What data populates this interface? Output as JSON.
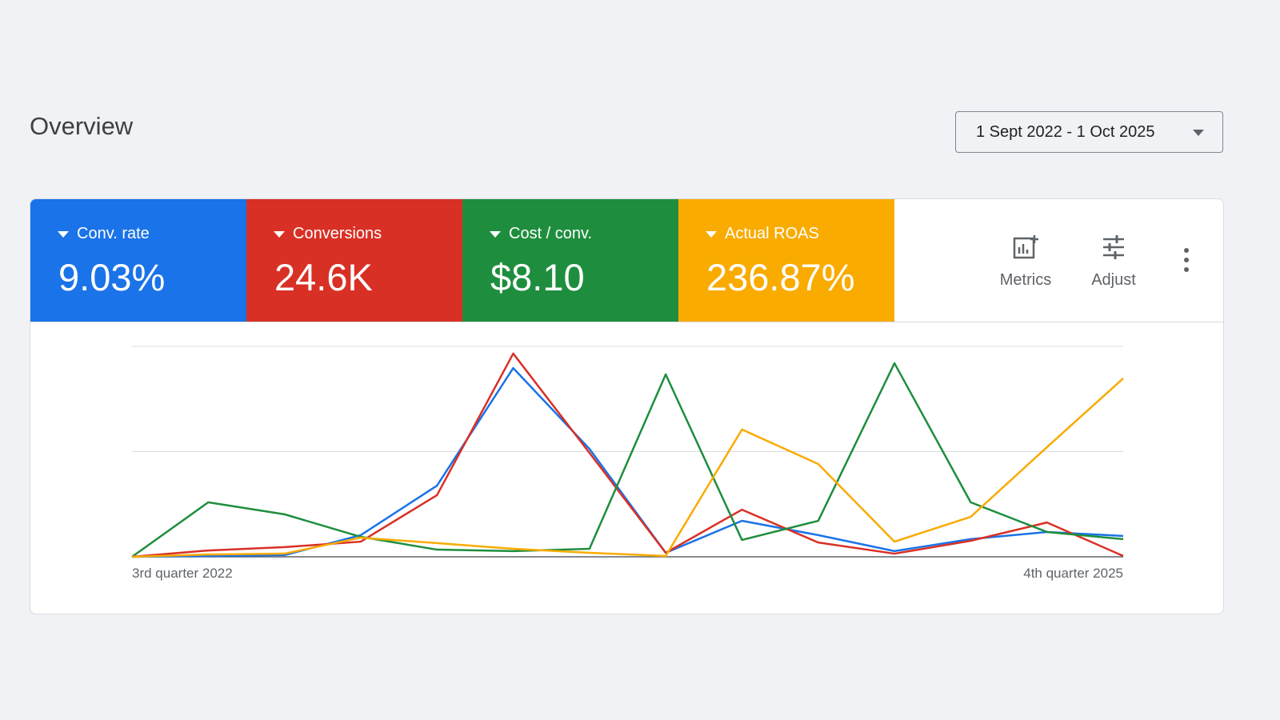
{
  "header": {
    "title": "Overview",
    "date_range": "1 Sept 2022 - 1 Oct 2025"
  },
  "metric_cards": [
    {
      "label": "Conv. rate",
      "value": "9.03%",
      "color": "#1a73e8"
    },
    {
      "label": "Conversions",
      "value": "24.6K",
      "color": "#d93025"
    },
    {
      "label": "Cost / conv.",
      "value": "$8.10",
      "color": "#1e8e3e"
    },
    {
      "label": "Actual ROAS",
      "value": "236.87%",
      "color": "#f9ab00"
    }
  ],
  "toolbar": {
    "metrics": "Metrics",
    "adjust": "Adjust"
  },
  "chart_data": {
    "type": "line",
    "categories": [
      "3rd quarter 2022",
      null,
      null,
      null,
      null,
      null,
      null,
      null,
      null,
      null,
      null,
      null,
      null,
      "4th quarter 2025"
    ],
    "ylim": [
      0,
      100
    ],
    "grid_values": [
      0,
      50,
      100
    ],
    "series": [
      {
        "color": "#1a73e8",
        "values": [
          0,
          0.4,
          0.8,
          10.3,
          33.8,
          89.7,
          51.3,
          1.9,
          17.1,
          10.3,
          2.7,
          8.4,
          11.8,
          9.9
        ]
      },
      {
        "color": "#d93025",
        "values": [
          0,
          3,
          4.6,
          7.2,
          29.3,
          96.6,
          49.4,
          1.9,
          22.4,
          6.8,
          1.5,
          7.6,
          16.3,
          0.4
        ]
      },
      {
        "color": "#1e8e3e",
        "values": [
          0,
          25.9,
          20.2,
          9.5,
          3.4,
          2.7,
          3.8,
          86.7,
          8,
          17.1,
          92,
          25.9,
          11.8,
          8.4
        ]
      },
      {
        "color": "#f9ab00",
        "values": [
          0,
          1.1,
          1.5,
          9.1,
          6.5,
          3.8,
          1.9,
          0.4,
          60.5,
          44.1,
          7.2,
          19,
          52.1,
          84.8
        ]
      }
    ]
  }
}
